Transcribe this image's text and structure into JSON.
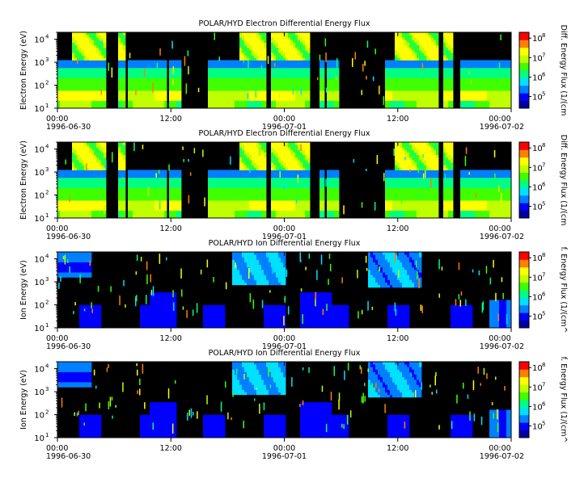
{
  "chart_data": [
    {
      "type": "heatmap",
      "title": "POLAR/HYD  Electron Differential Energy Flux",
      "ylabel": "Electron Energy (eV)",
      "colorbar_label": "Diff. Energy Flux (1/(cm",
      "yscale": "log",
      "ylim": [
        10,
        20000
      ],
      "yticks": [
        {
          "base": "10",
          "exp": "1"
        },
        {
          "base": "10",
          "exp": "2"
        },
        {
          "base": "10",
          "exp": "3"
        },
        {
          "base": "10",
          "exp": "4"
        }
      ],
      "cticks": [
        {
          "base": "10",
          "exp": "5"
        },
        {
          "base": "10",
          "exp": "6"
        },
        {
          "base": "10",
          "exp": "7"
        },
        {
          "base": "10",
          "exp": "8"
        }
      ],
      "xticks": [
        {
          "time": "00:00",
          "date": "1996-06-30"
        },
        {
          "time": "12:00",
          "date": ""
        },
        {
          "time": "00:00",
          "date": "1996-07-01"
        },
        {
          "time": "12:00",
          "date": ""
        },
        {
          "time": "00:00",
          "date": "1996-07-02"
        }
      ]
    },
    {
      "type": "heatmap",
      "title": "POLAR/HYD  Electron Differential Energy Flux",
      "ylabel": "Electron Energy (eV)",
      "colorbar_label": "Diff. Energy Flux (1/(cm",
      "yscale": "log",
      "ylim": [
        10,
        20000
      ],
      "yticks": [
        {
          "base": "10",
          "exp": "1"
        },
        {
          "base": "10",
          "exp": "2"
        },
        {
          "base": "10",
          "exp": "3"
        },
        {
          "base": "10",
          "exp": "4"
        }
      ],
      "cticks": [
        {
          "base": "10",
          "exp": "5"
        },
        {
          "base": "10",
          "exp": "6"
        },
        {
          "base": "10",
          "exp": "7"
        },
        {
          "base": "10",
          "exp": "8"
        }
      ],
      "xticks": [
        {
          "time": "00:00",
          "date": "1996-06-30"
        },
        {
          "time": "12:00",
          "date": ""
        },
        {
          "time": "00:00",
          "date": "1996-07-01"
        },
        {
          "time": "12:00",
          "date": ""
        },
        {
          "time": "00:00",
          "date": "1996-07-02"
        }
      ]
    },
    {
      "type": "heatmap",
      "title": "POLAR/HYD  Ion Differential Energy Flux",
      "ylabel": "Ion Energy (eV)",
      "colorbar_label": "f. Energy Flux (1/(cm^",
      "yscale": "log",
      "ylim": [
        10,
        20000
      ],
      "yticks": [
        {
          "base": "10",
          "exp": "1"
        },
        {
          "base": "10",
          "exp": "2"
        },
        {
          "base": "10",
          "exp": "3"
        },
        {
          "base": "10",
          "exp": "4"
        }
      ],
      "cticks": [
        {
          "base": "10",
          "exp": "5"
        },
        {
          "base": "10",
          "exp": "6"
        },
        {
          "base": "10",
          "exp": "7"
        },
        {
          "base": "10",
          "exp": "8"
        }
      ],
      "xticks": [
        {
          "time": "00:00",
          "date": "1996-06-30"
        },
        {
          "time": "12:00",
          "date": ""
        },
        {
          "time": "00:00",
          "date": "1996-07-01"
        },
        {
          "time": "12:00",
          "date": ""
        },
        {
          "time": "00:00",
          "date": "1996-07-02"
        }
      ]
    },
    {
      "type": "heatmap",
      "title": "POLAR/HYD  Ion Differential Energy Flux",
      "ylabel": "Ion Energy (eV)",
      "colorbar_label": "f. Energy Flux (1/(cm^",
      "yscale": "log",
      "ylim": [
        10,
        20000
      ],
      "yticks": [
        {
          "base": "10",
          "exp": "1"
        },
        {
          "base": "10",
          "exp": "2"
        },
        {
          "base": "10",
          "exp": "3"
        },
        {
          "base": "10",
          "exp": "4"
        }
      ],
      "cticks": [
        {
          "base": "10",
          "exp": "5"
        },
        {
          "base": "10",
          "exp": "6"
        },
        {
          "base": "10",
          "exp": "7"
        },
        {
          "base": "10",
          "exp": "8"
        }
      ],
      "xticks": [
        {
          "time": "00:00",
          "date": "1996-06-30"
        },
        {
          "time": "12:00",
          "date": ""
        },
        {
          "time": "00:00",
          "date": "1996-07-01"
        },
        {
          "time": "12:00",
          "date": ""
        },
        {
          "time": "00:00",
          "date": "1996-07-02"
        }
      ]
    }
  ],
  "colors": {
    "background": "#000000",
    "colormap": [
      "#0000a0",
      "#0000ff",
      "#0080ff",
      "#00e0ff",
      "#00ff80",
      "#40ff00",
      "#c0ff00",
      "#ffff00",
      "#ff8000",
      "#ff0000"
    ]
  }
}
